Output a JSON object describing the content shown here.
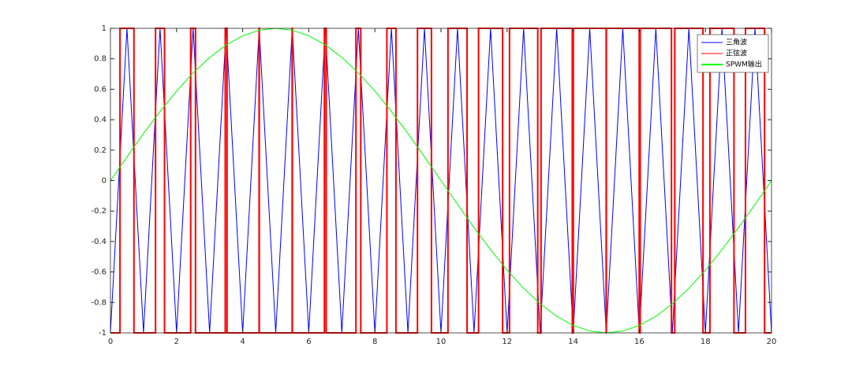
{
  "chart_data": {
    "type": "line",
    "xlim": [
      0,
      20
    ],
    "xticks": [
      0,
      2,
      4,
      6,
      8,
      10,
      12,
      14,
      16,
      18,
      20
    ],
    "ylim": [
      -1,
      1
    ],
    "yticks": [
      -1,
      -0.8,
      -0.6,
      -0.4,
      -0.2,
      0,
      0.2,
      0.4,
      0.6,
      0.8,
      1
    ],
    "legend": "upper right",
    "series": [
      {
        "name": "三角波",
        "color": "#0000ff",
        "x": [
          0,
          0.5,
          1,
          1.5,
          2,
          2.5,
          3,
          3.5,
          4,
          4.5,
          5,
          5.5,
          6,
          6.5,
          7,
          7.5,
          8,
          8.5,
          9,
          9.5,
          10,
          10.5,
          11,
          11.5,
          12,
          12.5,
          13,
          13.5,
          14,
          14.5,
          15,
          15.5,
          16,
          16.5,
          17,
          17.5,
          18,
          18.5,
          19,
          19.5,
          20
        ],
        "values": [
          -1,
          1,
          -1,
          1,
          -1,
          1,
          -1,
          1,
          -1,
          1,
          -1,
          1,
          -1,
          1,
          -1,
          1,
          -1,
          1,
          -1,
          1,
          -1,
          1,
          -1,
          1,
          -1,
          1,
          -1,
          1,
          -1,
          1,
          -1,
          1,
          -1,
          1,
          -1,
          1,
          -1,
          1,
          -1,
          1,
          -1
        ]
      },
      {
        "name": "正弦波",
        "color": "#ff0000",
        "x": [
          0,
          0.289,
          0.289,
          0.711,
          0.711,
          1.364,
          1.364,
          1.636,
          1.636,
          2.427,
          2.427,
          2.573,
          2.573,
          3.473,
          3.473,
          3.527,
          3.527,
          4.497,
          4.497,
          4.503,
          4.503,
          5.497,
          5.497,
          5.503,
          5.503,
          6.473,
          6.473,
          6.527,
          6.527,
          7.427,
          7.427,
          7.573,
          7.573,
          8.363,
          8.363,
          8.637,
          8.637,
          9.289,
          9.289,
          9.711,
          9.711,
          10.211,
          10.211,
          10.789,
          10.789,
          11.136,
          11.136,
          11.864,
          11.864,
          12.073,
          12.073,
          12.927,
          12.927,
          13.027,
          13.027,
          13.973,
          13.973,
          14.003,
          14.003,
          14.997,
          14.997,
          15.003,
          15.003,
          15.997,
          15.997,
          16.027,
          16.027,
          16.973,
          16.973,
          17.073,
          17.073,
          17.927,
          17.927,
          18.136,
          18.136,
          18.864,
          18.864,
          19.211,
          19.211,
          19.789,
          19.789,
          20
        ],
        "values": [
          -1,
          -1,
          1,
          1,
          -1,
          -1,
          1,
          1,
          -1,
          -1,
          1,
          1,
          -1,
          -1,
          1,
          1,
          -1,
          -1,
          1,
          1,
          -1,
          -1,
          1,
          1,
          -1,
          -1,
          1,
          1,
          -1,
          -1,
          1,
          1,
          -1,
          -1,
          1,
          1,
          -1,
          -1,
          1,
          1,
          -1,
          -1,
          1,
          1,
          -1,
          -1,
          1,
          1,
          -1,
          -1,
          1,
          1,
          -1,
          -1,
          1,
          1,
          -1,
          -1,
          1,
          1,
          -1,
          -1,
          1,
          1,
          -1,
          -1,
          1,
          1,
          -1,
          -1,
          1,
          1,
          -1,
          -1,
          1,
          1,
          -1,
          -1,
          1,
          1,
          -1,
          -1
        ]
      },
      {
        "name": "SPWM输出",
        "color": "#00ff00",
        "x": [
          0,
          0.5,
          1,
          1.5,
          2,
          2.5,
          3,
          3.5,
          4,
          4.5,
          5,
          5.5,
          6,
          6.5,
          7,
          7.5,
          8,
          8.5,
          9,
          9.5,
          10,
          10.5,
          11,
          11.5,
          12,
          12.5,
          13,
          13.5,
          14,
          14.5,
          15,
          15.5,
          16,
          16.5,
          17,
          17.5,
          18,
          18.5,
          19,
          19.5,
          20
        ],
        "values": [
          0,
          0.156,
          0.309,
          0.454,
          0.588,
          0.707,
          0.809,
          0.891,
          0.951,
          0.988,
          1,
          0.988,
          0.951,
          0.891,
          0.809,
          0.707,
          0.588,
          0.454,
          0.309,
          0.156,
          0,
          -0.156,
          -0.309,
          -0.454,
          -0.588,
          -0.707,
          -0.809,
          -0.891,
          -0.951,
          -0.988,
          -1,
          -0.988,
          -0.951,
          -0.891,
          -0.809,
          -0.707,
          -0.588,
          -0.454,
          -0.309,
          -0.156,
          0
        ]
      }
    ]
  }
}
